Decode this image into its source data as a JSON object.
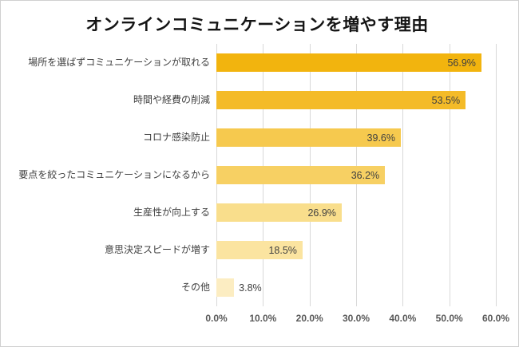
{
  "title": "オンラインコミュニケーションを増やす理由",
  "chart_data": {
    "type": "bar",
    "orientation": "horizontal",
    "title": "オンラインコミュニケーションを増やす理由",
    "categories": [
      "場所を選ばずコミュニケーションが取れる",
      "時間や経費の削減",
      "コロナ感染防止",
      "要点を絞ったコミュニケーションになるから",
      "生産性が向上する",
      "意思決定スピードが増す",
      "その他"
    ],
    "values": [
      56.9,
      53.5,
      39.6,
      36.2,
      26.9,
      18.5,
      3.8
    ],
    "value_labels": [
      "56.9%",
      "53.5%",
      "39.6%",
      "36.2%",
      "26.9%",
      "18.5%",
      "3.8%"
    ],
    "xlim": [
      0,
      60
    ],
    "x_ticks": [
      "0.0%",
      "10.0%",
      "20.0%",
      "30.0%",
      "40.0%",
      "50.0%",
      "60.0%"
    ],
    "bar_colors": [
      "#F2B40E",
      "#F4BB28",
      "#F6C94E",
      "#F7D063",
      "#F9DE8C",
      "#FBE4A0",
      "#FCEDC2"
    ],
    "grid": true,
    "gridline_color": "#D9D9D9",
    "legend": false
  }
}
